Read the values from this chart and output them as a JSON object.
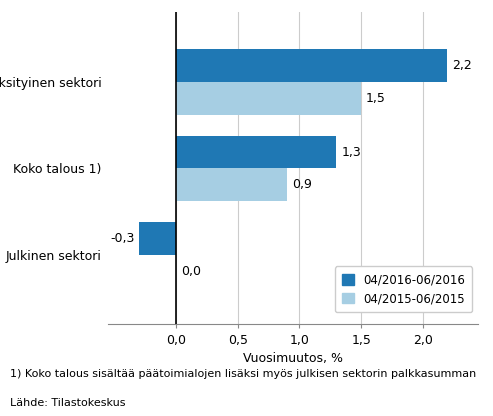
{
  "categories": [
    "Julkinen sektori",
    "Koko talous 1)",
    "Yksityinen sektori"
  ],
  "series_2016": [
    -0.3,
    1.3,
    2.2
  ],
  "series_2015": [
    0.0,
    0.9,
    1.5
  ],
  "color_2016": "#1F78B4",
  "color_2015": "#A6CEE3",
  "legend_2016": "04/2016-06/2016",
  "legend_2015": "04/2015-06/2015",
  "xlabel": "Vuosimuutos, %",
  "xlim": [
    -0.55,
    2.45
  ],
  "xticks": [
    0.0,
    0.5,
    1.0,
    1.5,
    2.0
  ],
  "xtick_labels": [
    "0,0",
    "0,5",
    "1,0",
    "1,5",
    "2,0"
  ],
  "footnote1": "1) Koko talous sisältää päätoimialojen lisäksi myös julkisen sektorin palkkasumman",
  "footnote2": "Lähde: Tilastokeskus",
  "bar_height": 0.38,
  "background_color": "#ffffff",
  "grid_color": "#cccccc",
  "label_fontsize": 9,
  "axis_fontsize": 9,
  "legend_fontsize": 8.5,
  "footnote_fontsize": 8
}
